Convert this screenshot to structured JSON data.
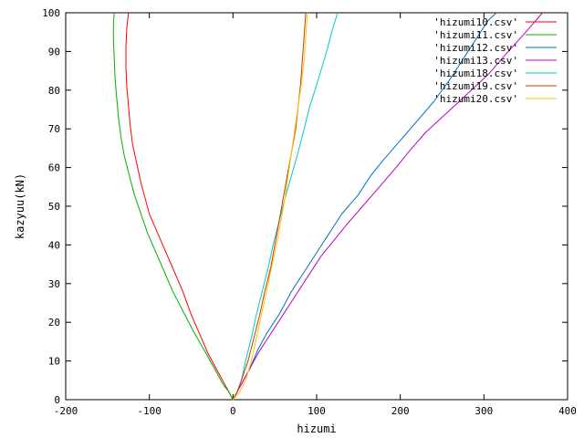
{
  "chart_data": {
    "type": "line",
    "title": "",
    "xlabel": "hizumi",
    "ylabel": "kazyuu(kN)",
    "xlim": [
      -200,
      400
    ],
    "ylim": [
      0,
      100
    ],
    "xticks": [
      -200,
      -100,
      0,
      100,
      200,
      300,
      400
    ],
    "yticks": [
      0,
      10,
      20,
      30,
      40,
      50,
      60,
      70,
      80,
      90,
      100
    ],
    "grid": false,
    "legend_position": "top-right",
    "series": [
      {
        "name": "'hizumi10.csv'",
        "color": "#ff0000",
        "points": [
          [
            0,
            0
          ],
          [
            -5,
            2
          ],
          [
            -10,
            4
          ],
          [
            -20,
            8
          ],
          [
            -30,
            12
          ],
          [
            -40,
            17
          ],
          [
            -50,
            22
          ],
          [
            -60,
            28
          ],
          [
            -70,
            33
          ],
          [
            -80,
            38
          ],
          [
            -90,
            43
          ],
          [
            -100,
            48
          ],
          [
            -105,
            52
          ],
          [
            -110,
            56
          ],
          [
            -115,
            61
          ],
          [
            -120,
            66
          ],
          [
            -123,
            71
          ],
          [
            -125,
            76
          ],
          [
            -127,
            81
          ],
          [
            -128,
            86
          ],
          [
            -128,
            91
          ],
          [
            -127,
            96
          ],
          [
            -125,
            100
          ]
        ]
      },
      {
        "name": "'hizumi11.csv'",
        "color": "#00b000",
        "points": [
          [
            0,
            0
          ],
          [
            -5,
            2
          ],
          [
            -12,
            4
          ],
          [
            -22,
            8
          ],
          [
            -35,
            13
          ],
          [
            -48,
            18
          ],
          [
            -60,
            23
          ],
          [
            -72,
            28
          ],
          [
            -82,
            33
          ],
          [
            -92,
            38
          ],
          [
            -102,
            43
          ],
          [
            -110,
            48
          ],
          [
            -118,
            53
          ],
          [
            -124,
            58
          ],
          [
            -130,
            63
          ],
          [
            -134,
            68
          ],
          [
            -137,
            73
          ],
          [
            -139,
            78
          ],
          [
            -141,
            83
          ],
          [
            -142,
            88
          ],
          [
            -143,
            93
          ],
          [
            -143,
            97
          ],
          [
            -142,
            100
          ]
        ]
      },
      {
        "name": "'hizumi12.csv'",
        "color": "#0070c0",
        "points": [
          [
            0,
            0
          ],
          [
            5,
            2
          ],
          [
            10,
            4
          ],
          [
            20,
            8
          ],
          [
            30,
            13
          ],
          [
            40,
            17
          ],
          [
            55,
            22
          ],
          [
            70,
            28
          ],
          [
            85,
            33
          ],
          [
            100,
            38
          ],
          [
            115,
            43
          ],
          [
            130,
            48
          ],
          [
            150,
            53
          ],
          [
            165,
            58
          ],
          [
            180,
            62
          ],
          [
            200,
            67
          ],
          [
            220,
            72
          ],
          [
            240,
            77
          ],
          [
            260,
            83
          ],
          [
            275,
            88
          ],
          [
            290,
            93
          ],
          [
            305,
            98
          ],
          [
            315,
            100
          ]
        ]
      },
      {
        "name": "'hizumi13.csv'",
        "color": "#c000c0",
        "points": [
          [
            0,
            0
          ],
          [
            5,
            2
          ],
          [
            10,
            4
          ],
          [
            20,
            8
          ],
          [
            30,
            12
          ],
          [
            45,
            17
          ],
          [
            60,
            22
          ],
          [
            75,
            27
          ],
          [
            90,
            32
          ],
          [
            105,
            37
          ],
          [
            120,
            41
          ],
          [
            135,
            45
          ],
          [
            155,
            50
          ],
          [
            175,
            55
          ],
          [
            195,
            60
          ],
          [
            210,
            64
          ],
          [
            230,
            69
          ],
          [
            255,
            74
          ],
          [
            280,
            79
          ],
          [
            305,
            84
          ],
          [
            325,
            89
          ],
          [
            350,
            95
          ],
          [
            370,
            100
          ]
        ]
      },
      {
        "name": "'hizumi18.csv'",
        "color": "#00c8c8",
        "points": [
          [
            0,
            0
          ],
          [
            5,
            2
          ],
          [
            10,
            5
          ],
          [
            15,
            10
          ],
          [
            22,
            16
          ],
          [
            28,
            22
          ],
          [
            35,
            28
          ],
          [
            42,
            34
          ],
          [
            48,
            40
          ],
          [
            55,
            46
          ],
          [
            62,
            52
          ],
          [
            70,
            58
          ],
          [
            78,
            64
          ],
          [
            85,
            70
          ],
          [
            92,
            76
          ],
          [
            98,
            80
          ],
          [
            105,
            85
          ],
          [
            112,
            90
          ],
          [
            118,
            95
          ],
          [
            125,
            100
          ]
        ]
      },
      {
        "name": "'hizumi19.csv'",
        "color": "#c04000",
        "points": [
          [
            0,
            0
          ],
          [
            5,
            2
          ],
          [
            10,
            5
          ],
          [
            18,
            10
          ],
          [
            25,
            16
          ],
          [
            32,
            22
          ],
          [
            38,
            28
          ],
          [
            45,
            34
          ],
          [
            50,
            40
          ],
          [
            55,
            46
          ],
          [
            60,
            52
          ],
          [
            65,
            58
          ],
          [
            70,
            64
          ],
          [
            75,
            70
          ],
          [
            78,
            76
          ],
          [
            81,
            82
          ],
          [
            83,
            88
          ],
          [
            85,
            94
          ],
          [
            87,
            100
          ]
        ]
      },
      {
        "name": "'hizumi20.csv'",
        "color": "#ffc000",
        "points": [
          [
            0,
            0
          ],
          [
            8,
            2
          ],
          [
            15,
            5
          ],
          [
            22,
            10
          ],
          [
            28,
            16
          ],
          [
            34,
            22
          ],
          [
            40,
            28
          ],
          [
            46,
            34
          ],
          [
            52,
            40
          ],
          [
            57,
            46
          ],
          [
            62,
            52
          ],
          [
            66,
            58
          ],
          [
            70,
            64
          ],
          [
            74,
            70
          ],
          [
            78,
            76
          ],
          [
            82,
            82
          ],
          [
            85,
            88
          ],
          [
            87,
            94
          ],
          [
            89,
            100
          ]
        ]
      }
    ]
  }
}
